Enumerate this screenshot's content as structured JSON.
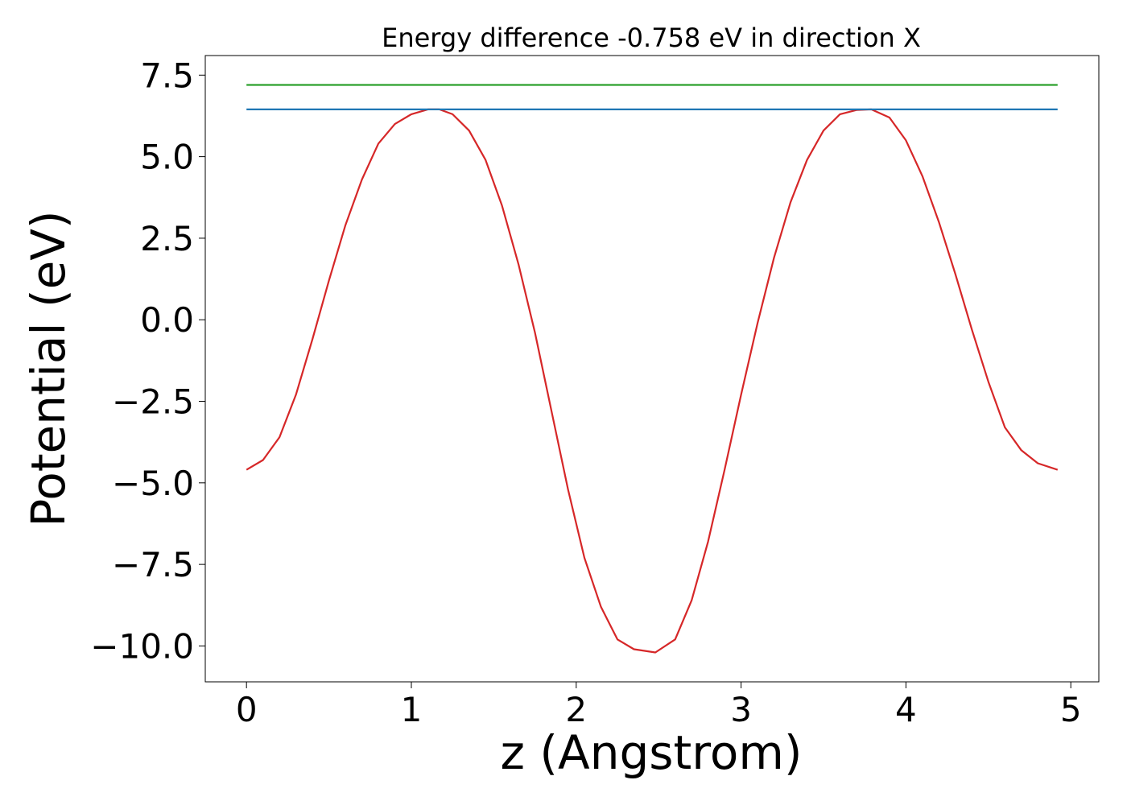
{
  "chart_data": {
    "type": "line",
    "title": "Energy difference -0.758 eV in direction X",
    "xlabel": "z (Angstrom)",
    "ylabel": "Potential (eV)",
    "xlim": [
      -0.25,
      5.17
    ],
    "ylim": [
      -11.1,
      8.1
    ],
    "xticks": [
      0,
      1,
      2,
      3,
      4,
      5
    ],
    "xtick_labels": [
      "0",
      "1",
      "2",
      "3",
      "4",
      "5"
    ],
    "yticks": [
      7.5,
      5.0,
      2.5,
      0.0,
      -2.5,
      -5.0,
      -7.5,
      -10.0
    ],
    "ytick_labels": [
      "7.5",
      "5.0",
      "2.5",
      "0.0",
      "−2.5",
      "−5.0",
      "−7.5",
      "−10.0"
    ],
    "grid": false,
    "series": [
      {
        "color": "#d62728",
        "x": [
          0.0,
          0.1,
          0.2,
          0.3,
          0.4,
          0.5,
          0.6,
          0.7,
          0.8,
          0.9,
          1.0,
          1.1,
          1.17,
          1.25,
          1.35,
          1.45,
          1.55,
          1.65,
          1.75,
          1.85,
          1.95,
          2.05,
          2.15,
          2.25,
          2.35,
          2.48,
          2.6,
          2.7,
          2.8,
          2.9,
          3.0,
          3.1,
          3.2,
          3.3,
          3.4,
          3.5,
          3.6,
          3.7,
          3.79,
          3.9,
          4.0,
          4.1,
          4.2,
          4.3,
          4.4,
          4.5,
          4.6,
          4.7,
          4.8,
          4.92
        ],
        "y": [
          -4.6,
          -4.3,
          -3.6,
          -2.3,
          -0.6,
          1.2,
          2.9,
          4.3,
          5.4,
          6.0,
          6.3,
          6.45,
          6.45,
          6.3,
          5.8,
          4.9,
          3.5,
          1.7,
          -0.4,
          -2.8,
          -5.2,
          -7.3,
          -8.8,
          -9.8,
          -10.1,
          -10.2,
          -9.8,
          -8.6,
          -6.8,
          -4.6,
          -2.3,
          -0.1,
          1.9,
          3.6,
          4.9,
          5.8,
          6.3,
          6.43,
          6.45,
          6.2,
          5.5,
          4.4,
          3.0,
          1.4,
          -0.3,
          -1.9,
          -3.3,
          -4.0,
          -4.4,
          -4.6
        ]
      },
      {
        "color": "#1f77b4",
        "x": [
          0.0,
          4.92
        ],
        "y": [
          6.45,
          6.45
        ]
      },
      {
        "color": "#2ca02c",
        "x": [
          0.0,
          4.92
        ],
        "y": [
          7.2,
          7.2
        ]
      }
    ]
  }
}
